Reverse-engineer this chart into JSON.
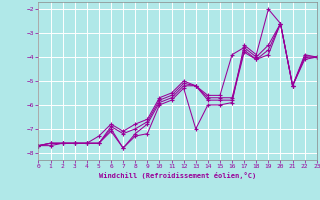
{
  "xlabel": "Windchill (Refroidissement éolien,°C)",
  "bg_color": "#b0e8e8",
  "grid_color": "#c8e8e0",
  "line_color": "#990099",
  "x_data": [
    0,
    1,
    2,
    3,
    4,
    5,
    6,
    7,
    8,
    9,
    10,
    11,
    12,
    13,
    14,
    15,
    16,
    17,
    18,
    19,
    20,
    21,
    22,
    23
  ],
  "y_series": [
    [
      -7.7,
      -7.7,
      -7.6,
      -7.6,
      -7.6,
      -7.6,
      -7.1,
      -7.8,
      -7.3,
      -7.2,
      -6.0,
      -5.8,
      -5.3,
      -7.0,
      -6.0,
      -6.0,
      -5.9,
      -3.5,
      -3.9,
      -2.0,
      -2.6,
      -5.2,
      -4.1,
      -4.0
    ],
    [
      -7.7,
      -7.6,
      -7.6,
      -7.6,
      -7.6,
      -7.6,
      -7.0,
      -7.8,
      -7.2,
      -6.8,
      -5.9,
      -5.7,
      -5.2,
      -5.2,
      -5.8,
      -5.8,
      -5.8,
      -3.8,
      -4.1,
      -3.9,
      -2.6,
      -5.2,
      -3.9,
      -4.0
    ],
    [
      -7.7,
      -7.6,
      -7.6,
      -7.6,
      -7.6,
      -7.6,
      -6.9,
      -7.2,
      -7.0,
      -6.7,
      -5.8,
      -5.6,
      -5.1,
      -5.2,
      -5.7,
      -5.7,
      -5.7,
      -3.7,
      -4.1,
      -3.7,
      -2.6,
      -5.2,
      -4.0,
      -4.0
    ],
    [
      -7.7,
      -7.6,
      -7.6,
      -7.6,
      -7.6,
      -7.3,
      -6.8,
      -7.1,
      -6.8,
      -6.6,
      -5.7,
      -5.5,
      -5.0,
      -5.2,
      -5.6,
      -5.6,
      -3.9,
      -3.6,
      -4.0,
      -3.5,
      -2.6,
      -5.2,
      -4.0,
      -4.0
    ]
  ],
  "xlim": [
    0,
    23
  ],
  "ylim": [
    -8.3,
    -1.7
  ],
  "yticks": [
    -8,
    -7,
    -6,
    -5,
    -4,
    -3,
    -2
  ],
  "xticks": [
    0,
    1,
    2,
    3,
    4,
    5,
    6,
    7,
    8,
    9,
    10,
    11,
    12,
    13,
    14,
    15,
    16,
    17,
    18,
    19,
    20,
    21,
    22,
    23
  ]
}
